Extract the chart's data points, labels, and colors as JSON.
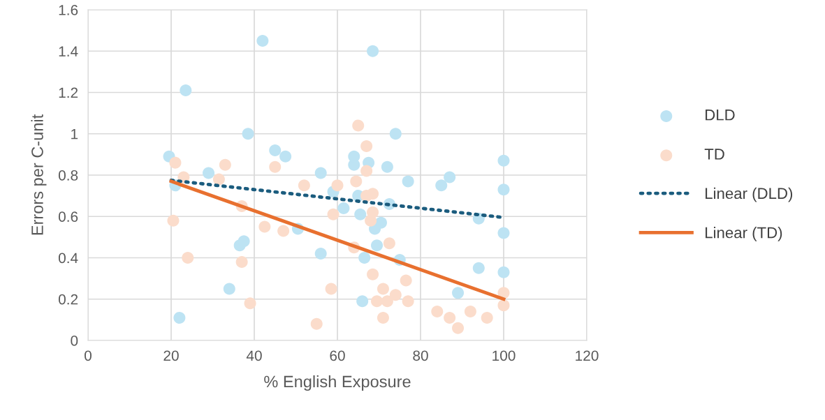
{
  "chart_data": {
    "type": "scatter",
    "xlabel": "% English Exposure",
    "ylabel": "Errors per C-unit",
    "xlim": [
      0,
      120
    ],
    "xticks": [
      0,
      20,
      40,
      60,
      80,
      100,
      120
    ],
    "ylim": [
      0,
      1.6
    ],
    "yticks": [
      0,
      0.2,
      0.4,
      0.6,
      0.8,
      1,
      1.2,
      1.4,
      1.6
    ],
    "grid": true,
    "legend": "right",
    "marker": "circle",
    "series": [
      {
        "name": "DLD",
        "color": "#bde3f3",
        "x": [
          19.5,
          21,
          22,
          23.5,
          29,
          34,
          36.5,
          37.5,
          38.5,
          42,
          45,
          47.5,
          50.5,
          56,
          56,
          59,
          61.5,
          64,
          64,
          65,
          65.5,
          66,
          66.5,
          67.5,
          68.5,
          69,
          69.5,
          70.5,
          72,
          72.5,
          74,
          75,
          77,
          85,
          87,
          89,
          94,
          94,
          100,
          100,
          100,
          100
        ],
        "values": [
          0.89,
          0.75,
          0.11,
          1.21,
          0.81,
          0.25,
          0.46,
          0.48,
          1.0,
          1.45,
          0.92,
          0.89,
          0.54,
          0.81,
          0.42,
          0.72,
          0.64,
          0.85,
          0.89,
          0.7,
          0.61,
          0.19,
          0.4,
          0.86,
          1.4,
          0.54,
          0.46,
          0.57,
          0.84,
          0.66,
          1.0,
          0.39,
          0.77,
          0.75,
          0.79,
          0.23,
          0.59,
          0.35,
          0.87,
          0.73,
          0.52,
          0.33
        ]
      },
      {
        "name": "TD",
        "color": "#fbdccb",
        "x": [
          20.5,
          21,
          23,
          24,
          31.5,
          33,
          37,
          37,
          39,
          42.5,
          45,
          47,
          52,
          55,
          58.5,
          59,
          60,
          64,
          64.5,
          65,
          67,
          67,
          67,
          68,
          68.5,
          68.5,
          68.5,
          69.5,
          71,
          71,
          72,
          72.5,
          74,
          76.5,
          77,
          84,
          87,
          89,
          92,
          96,
          100,
          100
        ],
        "values": [
          0.58,
          0.86,
          0.79,
          0.4,
          0.78,
          0.85,
          0.65,
          0.38,
          0.18,
          0.55,
          0.84,
          0.53,
          0.75,
          0.08,
          0.25,
          0.61,
          0.75,
          0.45,
          0.77,
          1.04,
          0.94,
          0.82,
          0.7,
          0.58,
          0.32,
          0.62,
          0.71,
          0.19,
          0.25,
          0.11,
          0.19,
          0.47,
          0.22,
          0.29,
          0.19,
          0.14,
          0.11,
          0.06,
          0.14,
          0.11,
          0.23,
          0.17
        ]
      },
      {
        "name": "Linear (DLD)",
        "type": "line",
        "line_style": "dotted",
        "marker": "none",
        "color": "#1b5c7e",
        "x": [
          20,
          100
        ],
        "values": [
          0.775,
          0.595
        ]
      },
      {
        "name": "Linear (TD)",
        "type": "line",
        "line_style": "solid",
        "marker": "none",
        "color": "#e8702f",
        "x": [
          20,
          100
        ],
        "values": [
          0.77,
          0.2
        ]
      }
    ]
  }
}
